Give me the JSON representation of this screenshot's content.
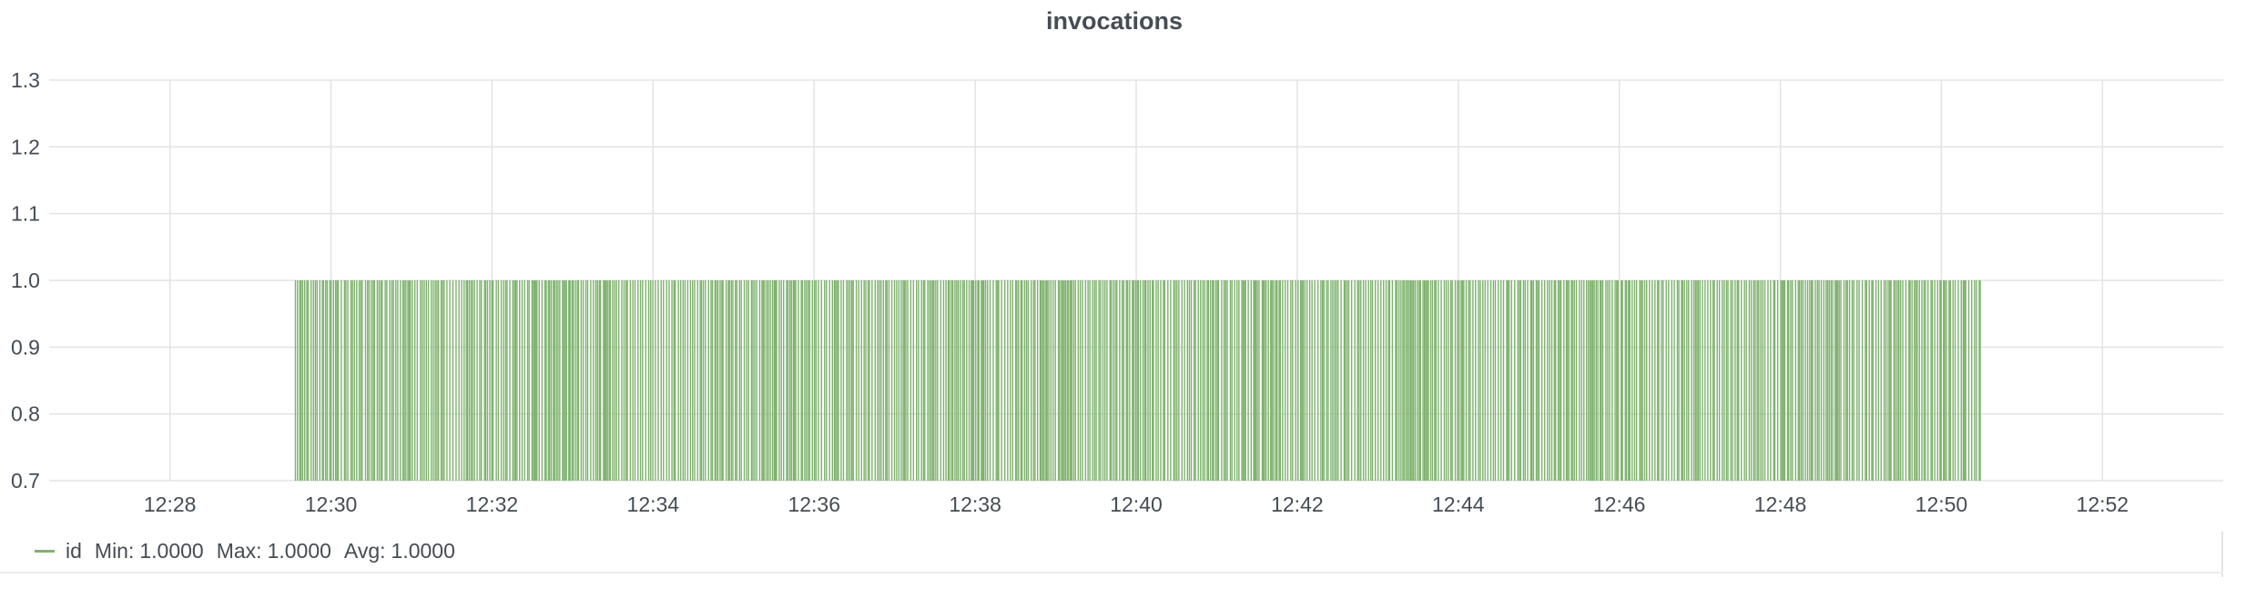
{
  "panel": {
    "title": "invocations"
  },
  "colors": {
    "series": "#7eb26d",
    "grid": "#e3e3e3",
    "text": "#464c54"
  },
  "legend": {
    "series_name": "id",
    "min_label": "Min:",
    "min_value": "1.0000",
    "max_label": "Max:",
    "max_value": "1.0000",
    "avg_label": "Avg:",
    "avg_value": "1.0000"
  },
  "chart_data": {
    "type": "bar",
    "title": "invocations",
    "xlabel": "",
    "ylabel": "",
    "ylim": [
      0.7,
      1.3
    ],
    "xlim": [
      "12:26:30",
      "12:53:30"
    ],
    "grid": true,
    "legend_position": "bottom-left",
    "y_ticks": [
      "1.3",
      "1.2",
      "1.1",
      "1.0",
      "0.9",
      "0.8",
      "0.7"
    ],
    "x_ticks": [
      "12:28",
      "12:30",
      "12:32",
      "12:34",
      "12:36",
      "12:38",
      "12:40",
      "12:42",
      "12:44",
      "12:46",
      "12:48",
      "12:50",
      "12:52"
    ],
    "series": [
      {
        "name": "id",
        "color": "#7eb26d",
        "x_start": "12:29:33",
        "x_end": "12:50:28",
        "value": 1.0,
        "description_of_density": "dense vertical bars, one per invocation, all with value 1.0"
      }
    ]
  }
}
